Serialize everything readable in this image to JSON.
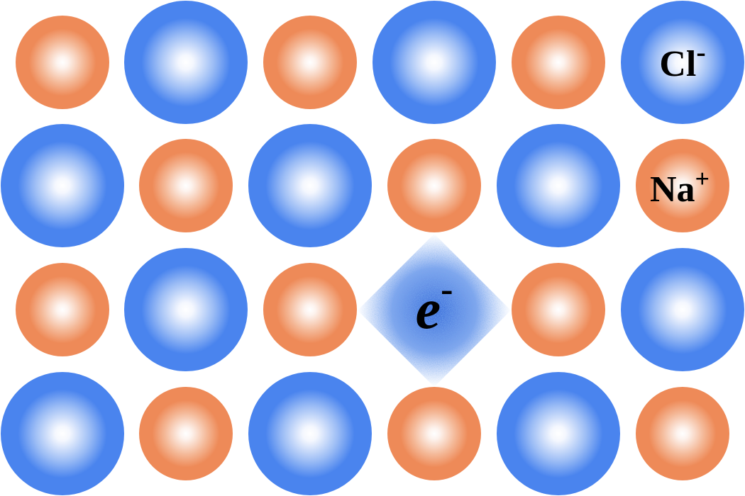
{
  "labels": {
    "chloride": "Cl",
    "chloride_charge": "-",
    "sodium": "Na",
    "sodium_charge": "+",
    "electron": "e",
    "electron_charge": "-"
  },
  "lattice": {
    "rows": [
      [
        "Na",
        "Cl",
        "Na",
        "Cl",
        "Na",
        "Cl"
      ],
      [
        "Cl",
        "Na",
        "Cl",
        "Na",
        "Cl",
        "Na"
      ],
      [
        "Na",
        "Cl",
        "Na",
        "e",
        "Na",
        "Cl"
      ],
      [
        "Cl",
        "Na",
        "Cl",
        "Na",
        "Cl",
        "Na"
      ]
    ],
    "labeled_chloride": {
      "row": 0,
      "col": 5
    },
    "labeled_sodium": {
      "row": 1,
      "col": 5
    }
  },
  "colors": {
    "chloride": "#4a84ee",
    "sodium": "#ee8a58",
    "center": "#ffffff",
    "electron_cloud": "#2a62d8"
  }
}
